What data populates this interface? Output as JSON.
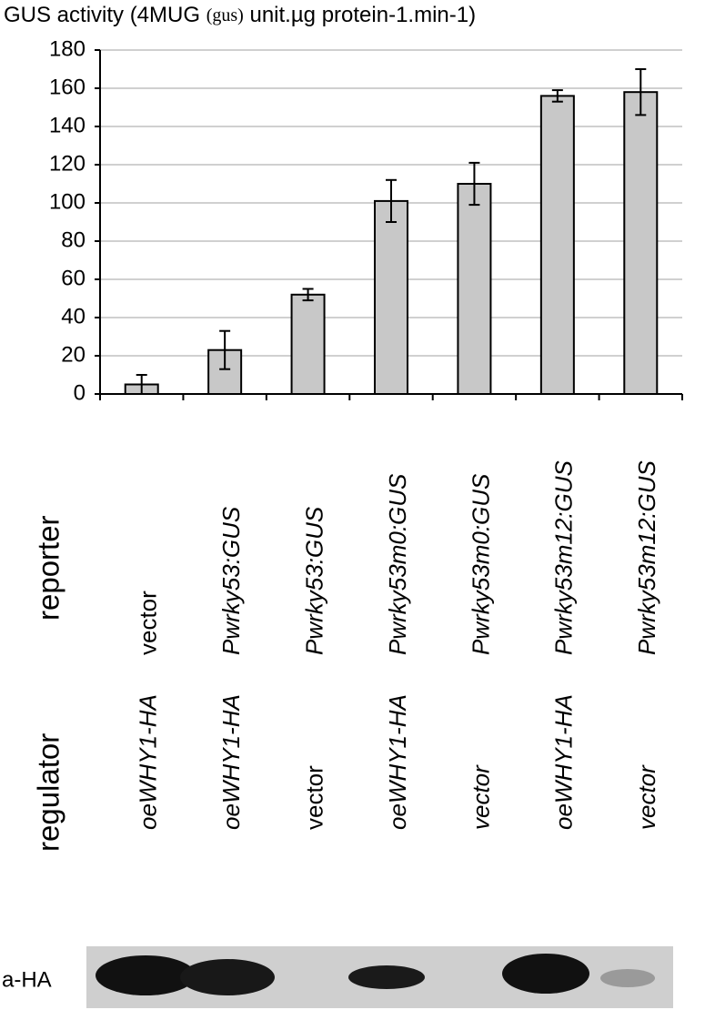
{
  "chart_data": {
    "type": "bar",
    "title": [
      "GUS activity (4MUG",
      "(gus)",
      "unit.µg protein-1.min-1)"
    ],
    "categories": [
      "vector",
      "Pwrky53:GUS",
      "Pwrky53:GUS",
      "Pwrky53m0:GUS",
      "Pwrky53m0:GUS",
      "Pwrky53m12:GUS",
      "Pwrky53m12:GUS"
    ],
    "regulators": [
      "oeWHY1-HA",
      "oeWHY1-HA",
      "vector",
      "oeWHY1-HA",
      "vector",
      "oeWHY1-HA",
      "vector"
    ],
    "reporter_label": "reporter",
    "regulator_label": "regulator",
    "blot_label": "a-HA",
    "values": [
      5,
      23,
      52,
      101,
      110,
      156,
      158
    ],
    "errors": [
      5,
      10,
      3,
      11,
      11,
      3,
      12
    ],
    "color": "#c8c8c8",
    "ylim": [
      0,
      180
    ],
    "yticks": [
      0,
      20,
      40,
      60,
      80,
      100,
      120,
      140,
      160,
      180
    ],
    "grid": true
  }
}
